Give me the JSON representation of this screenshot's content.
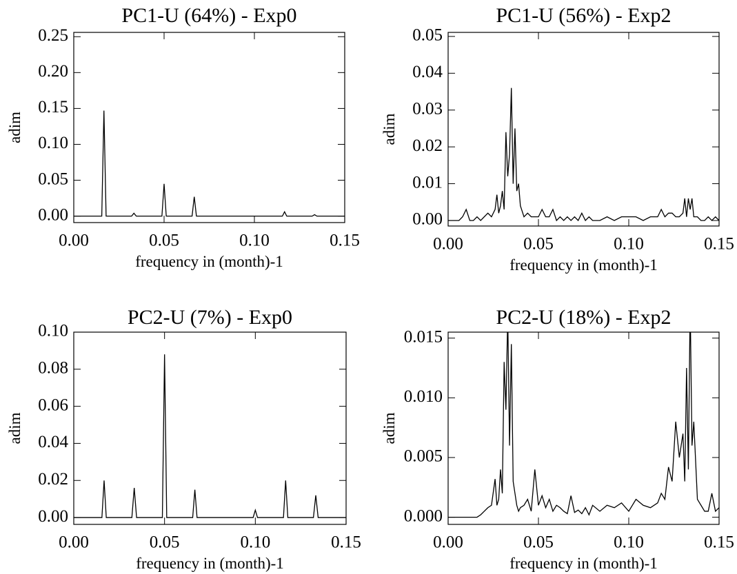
{
  "chart_data": [
    {
      "type": "line",
      "title": "PC1-U (64%) - Exp0",
      "x_label": "frequency in (month)-1",
      "y_label": "adim",
      "color": "#000000",
      "xlim": [
        0,
        0.15
      ],
      "xticks": [
        {
          "value": 0,
          "label": "0.00"
        },
        {
          "value": 0.05,
          "label": "0.05"
        },
        {
          "value": 0.1,
          "label": "0.10"
        },
        {
          "value": 0.15,
          "label": "0.15"
        }
      ],
      "ylim": [
        -0.009,
        0.256
      ],
      "yticks": [
        {
          "value": 0,
          "label": "0.00"
        },
        {
          "value": 0.05,
          "label": "0.05"
        },
        {
          "value": 0.1,
          "label": "0.10"
        },
        {
          "value": 0.15,
          "label": "0.15"
        },
        {
          "value": 0.2,
          "label": "0.20"
        },
        {
          "value": 0.25,
          "label": "0.25"
        }
      ],
      "x": [
        0,
        0.0155,
        0.0167,
        0.0179,
        0.032,
        0.0333,
        0.0346,
        0.0488,
        0.05,
        0.0512,
        0.0655,
        0.0667,
        0.0679,
        0.1155,
        0.1167,
        0.1179,
        0.132,
        0.1333,
        0.1346,
        0.15
      ],
      "values": [
        0,
        0,
        0.147,
        0,
        0,
        0.004,
        0,
        0,
        0.045,
        0,
        0,
        0.027,
        0,
        0,
        0.006,
        0,
        0,
        0.002,
        0,
        0
      ]
    },
    {
      "type": "line",
      "title": "PC1-U (56%) - Exp2",
      "x_label": "frequency in (month)-1",
      "y_label": "adim",
      "color": "#000000",
      "xlim": [
        0,
        0.15
      ],
      "xticks": [
        {
          "value": 0,
          "label": "0.00"
        },
        {
          "value": 0.05,
          "label": "0.05"
        },
        {
          "value": 0.1,
          "label": "0.10"
        },
        {
          "value": 0.15,
          "label": "0.15"
        }
      ],
      "ylim": [
        -0.0015,
        0.0511
      ],
      "yticks": [
        {
          "value": 0,
          "label": "0.00"
        },
        {
          "value": 0.01,
          "label": "0.01"
        },
        {
          "value": 0.02,
          "label": "0.02"
        },
        {
          "value": 0.03,
          "label": "0.03"
        },
        {
          "value": 0.04,
          "label": "0.04"
        },
        {
          "value": 0.05,
          "label": "0.05"
        }
      ],
      "x": [
        0,
        0.002,
        0.004,
        0.006,
        0.008,
        0.01,
        0.012,
        0.014,
        0.016,
        0.018,
        0.02,
        0.022,
        0.024,
        0.026,
        0.027,
        0.028,
        0.029,
        0.03,
        0.031,
        0.032,
        0.033,
        0.034,
        0.035,
        0.036,
        0.037,
        0.038,
        0.039,
        0.04,
        0.042,
        0.044,
        0.046,
        0.048,
        0.05,
        0.052,
        0.054,
        0.056,
        0.058,
        0.06,
        0.062,
        0.064,
        0.066,
        0.068,
        0.07,
        0.072,
        0.074,
        0.076,
        0.078,
        0.08,
        0.084,
        0.088,
        0.092,
        0.096,
        0.1,
        0.104,
        0.108,
        0.112,
        0.116,
        0.118,
        0.12,
        0.122,
        0.124,
        0.126,
        0.128,
        0.13,
        0.131,
        0.132,
        0.133,
        0.134,
        0.135,
        0.136,
        0.138,
        0.14,
        0.142,
        0.144,
        0.146,
        0.148,
        0.15
      ],
      "values": [
        0,
        0,
        0,
        0,
        0.001,
        0.003,
        0,
        0,
        0.001,
        0,
        0.001,
        0.002,
        0.001,
        0.003,
        0.007,
        0.002,
        0.004,
        0.008,
        0.003,
        0.024,
        0.012,
        0.018,
        0.036,
        0.01,
        0.025,
        0.008,
        0.01,
        0.004,
        0.001,
        0.002,
        0.001,
        0.001,
        0.001,
        0.003,
        0.001,
        0.001,
        0.003,
        0,
        0.001,
        0,
        0.001,
        0,
        0.001,
        0,
        0.002,
        0,
        0.001,
        0,
        0,
        0.001,
        0,
        0.001,
        0.001,
        0.001,
        0,
        0.001,
        0.001,
        0.003,
        0.001,
        0.002,
        0.002,
        0.001,
        0.001,
        0.002,
        0.006,
        0.001,
        0.006,
        0.003,
        0.006,
        0.001,
        0.001,
        0,
        0,
        0.001,
        0,
        0.001,
        0
      ]
    },
    {
      "type": "line",
      "title": "PC2-U (7%) - Exp0",
      "x_label": "frequency in (month)-1",
      "y_label": "adim",
      "color": "#000000",
      "xlim": [
        0,
        0.15
      ],
      "xticks": [
        {
          "value": 0,
          "label": "0.00"
        },
        {
          "value": 0.05,
          "label": "0.05"
        },
        {
          "value": 0.1,
          "label": "0.10"
        },
        {
          "value": 0.15,
          "label": "0.15"
        }
      ],
      "ylim": [
        -0.0037,
        0.1
      ],
      "yticks": [
        {
          "value": 0,
          "label": "0.00"
        },
        {
          "value": 0.02,
          "label": "0.02"
        },
        {
          "value": 0.04,
          "label": "0.04"
        },
        {
          "value": 0.06,
          "label": "0.06"
        },
        {
          "value": 0.08,
          "label": "0.08"
        },
        {
          "value": 0.1,
          "label": "0.10"
        }
      ],
      "x": [
        0,
        0.0155,
        0.0167,
        0.0179,
        0.032,
        0.0333,
        0.0346,
        0.0488,
        0.05,
        0.0512,
        0.0655,
        0.0667,
        0.0679,
        0.0988,
        0.1,
        0.1012,
        0.1155,
        0.1167,
        0.1179,
        0.132,
        0.1333,
        0.1346,
        0.15
      ],
      "values": [
        0,
        0,
        0.02,
        0,
        0,
        0.016,
        0,
        0,
        0.088,
        0,
        0,
        0.015,
        0,
        0,
        0.004,
        0,
        0,
        0.02,
        0,
        0,
        0.012,
        0,
        0
      ]
    },
    {
      "type": "line",
      "title": "PC2-U (18%) - Exp2",
      "x_label": "frequency in (month)-1",
      "y_label": "adim",
      "color": "#000000",
      "xlim": [
        0,
        0.15
      ],
      "xticks": [
        {
          "value": 0,
          "label": "0.00"
        },
        {
          "value": 0.05,
          "label": "0.05"
        },
        {
          "value": 0.1,
          "label": "0.10"
        },
        {
          "value": 0.15,
          "label": "0.15"
        }
      ],
      "ylim": [
        -0.0006,
        0.0155
      ],
      "yticks": [
        {
          "value": 0,
          "label": "0.000"
        },
        {
          "value": 0.005,
          "label": "0.005"
        },
        {
          "value": 0.01,
          "label": "0.010"
        },
        {
          "value": 0.015,
          "label": "0.015"
        }
      ],
      "x": [
        0,
        0.002,
        0.004,
        0.006,
        0.008,
        0.01,
        0.012,
        0.014,
        0.016,
        0.018,
        0.02,
        0.022,
        0.024,
        0.026,
        0.027,
        0.028,
        0.029,
        0.03,
        0.031,
        0.032,
        0.033,
        0.034,
        0.035,
        0.036,
        0.037,
        0.038,
        0.039,
        0.04,
        0.042,
        0.044,
        0.046,
        0.048,
        0.05,
        0.052,
        0.054,
        0.056,
        0.058,
        0.06,
        0.062,
        0.064,
        0.066,
        0.068,
        0.07,
        0.072,
        0.074,
        0.076,
        0.078,
        0.08,
        0.084,
        0.088,
        0.092,
        0.096,
        0.1,
        0.104,
        0.108,
        0.112,
        0.116,
        0.118,
        0.12,
        0.122,
        0.124,
        0.126,
        0.128,
        0.13,
        0.131,
        0.132,
        0.133,
        0.134,
        0.135,
        0.136,
        0.138,
        0.14,
        0.142,
        0.144,
        0.146,
        0.148,
        0.15
      ],
      "values": [
        0,
        0,
        0,
        0,
        0,
        0,
        0,
        0,
        0,
        0.0002,
        0.0005,
        0.0008,
        0.001,
        0.0032,
        0.001,
        0.0015,
        0.004,
        0.002,
        0.013,
        0.009,
        0.017,
        0.006,
        0.0145,
        0.003,
        0.002,
        0.001,
        0.0005,
        0.0008,
        0.001,
        0.0015,
        0.0005,
        0.004,
        0.001,
        0.0018,
        0.0008,
        0.0015,
        0.0005,
        0.001,
        0.0008,
        0.0005,
        0.0003,
        0.0018,
        0.0004,
        0.0006,
        0.0003,
        0.0008,
        0.0002,
        0.001,
        0.0005,
        0.001,
        0.0008,
        0.0012,
        0.0005,
        0.0015,
        0.001,
        0.0008,
        0.0012,
        0.002,
        0.0015,
        0.0042,
        0.003,
        0.008,
        0.005,
        0.007,
        0.003,
        0.0125,
        0.004,
        0.018,
        0.006,
        0.008,
        0.0015,
        0.001,
        0.0005,
        0.0005,
        0.002,
        0.0005,
        0.0008
      ]
    }
  ]
}
